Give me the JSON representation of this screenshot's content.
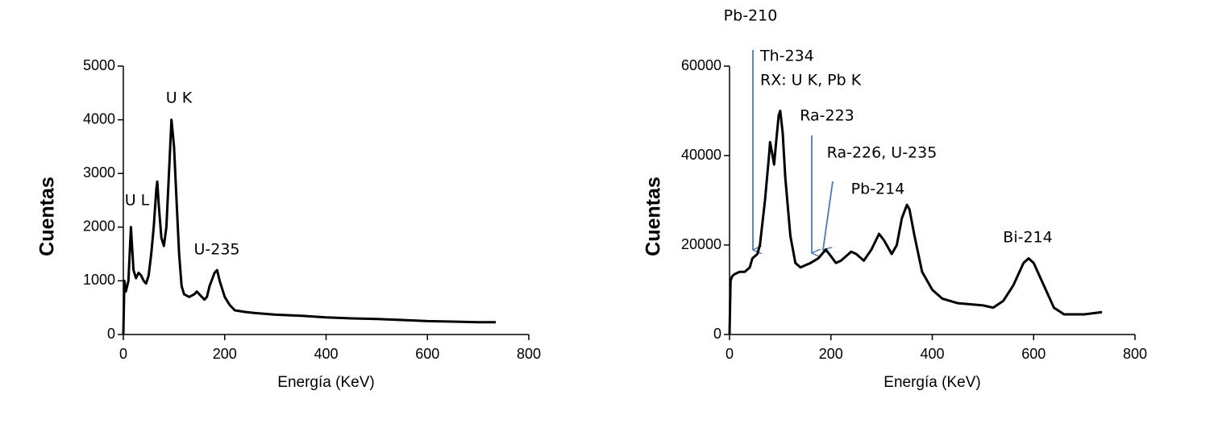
{
  "chart_data": [
    {
      "type": "line",
      "x_label": "Energía (KeV)",
      "y_label": "Cuentas",
      "color": "#000000",
      "xlim": [
        0,
        800
      ],
      "xticks": [
        0,
        200,
        400,
        600,
        800
      ],
      "ylim": [
        0,
        5000
      ],
      "yticks": [
        0,
        1000,
        2000,
        3000,
        4000,
        5000
      ],
      "annotations": [
        "U K",
        "U L",
        "U-235"
      ],
      "x": [
        0,
        2,
        5,
        10,
        15,
        20,
        25,
        30,
        35,
        40,
        45,
        50,
        55,
        60,
        65,
        67,
        70,
        75,
        80,
        85,
        90,
        95,
        100,
        105,
        110,
        115,
        120,
        130,
        140,
        145,
        150,
        160,
        165,
        170,
        180,
        185,
        190,
        200,
        210,
        220,
        240,
        260,
        300,
        350,
        400,
        450,
        500,
        550,
        600,
        650,
        700,
        735
      ],
      "values": [
        0,
        1000,
        800,
        1000,
        2000,
        1200,
        1050,
        1150,
        1100,
        1000,
        950,
        1100,
        1500,
        2000,
        2700,
        2850,
        2400,
        1800,
        1650,
        2000,
        3000,
        4000,
        3500,
        2500,
        1500,
        900,
        750,
        700,
        750,
        800,
        750,
        650,
        700,
        900,
        1150,
        1200,
        1000,
        700,
        550,
        450,
        420,
        400,
        370,
        350,
        320,
        300,
        290,
        270,
        250,
        240,
        230,
        230
      ]
    },
    {
      "type": "line",
      "x_label": "Energía (KeV)",
      "y_label": "Cuentas",
      "color": "#000000",
      "xlim": [
        0,
        800
      ],
      "xticks": [
        0,
        200,
        400,
        600,
        800
      ],
      "ylim": [
        0,
        60000
      ],
      "yticks": [
        0,
        20000,
        40000,
        60000
      ],
      "annotations": [
        "Pb-210",
        "Th-234",
        "RX: U K, Pb K",
        "Ra-223",
        "Ra-226, U-235",
        "Pb-214",
        "Bi-214"
      ],
      "x": [
        0,
        2,
        5,
        10,
        20,
        30,
        40,
        45,
        50,
        55,
        60,
        70,
        78,
        80,
        85,
        88,
        92,
        97,
        100,
        105,
        110,
        120,
        130,
        140,
        160,
        175,
        190,
        200,
        210,
        220,
        240,
        250,
        265,
        280,
        295,
        305,
        320,
        330,
        340,
        350,
        355,
        365,
        380,
        400,
        420,
        450,
        500,
        520,
        540,
        560,
        580,
        590,
        600,
        620,
        640,
        660,
        700,
        735
      ],
      "values": [
        0,
        12000,
        13000,
        13500,
        14000,
        14000,
        15000,
        17000,
        17500,
        18000,
        20000,
        30000,
        40000,
        43000,
        40000,
        38000,
        43000,
        49000,
        50000,
        45000,
        35000,
        22000,
        16000,
        15000,
        16000,
        17000,
        19000,
        17500,
        16000,
        16500,
        18500,
        18000,
        16500,
        19000,
        22500,
        21000,
        18000,
        20000,
        26000,
        29000,
        28000,
        22000,
        14000,
        10000,
        8000,
        7000,
        6500,
        6000,
        7500,
        11000,
        16000,
        17000,
        16000,
        11000,
        6000,
        4500,
        4500,
        5000
      ]
    }
  ]
}
